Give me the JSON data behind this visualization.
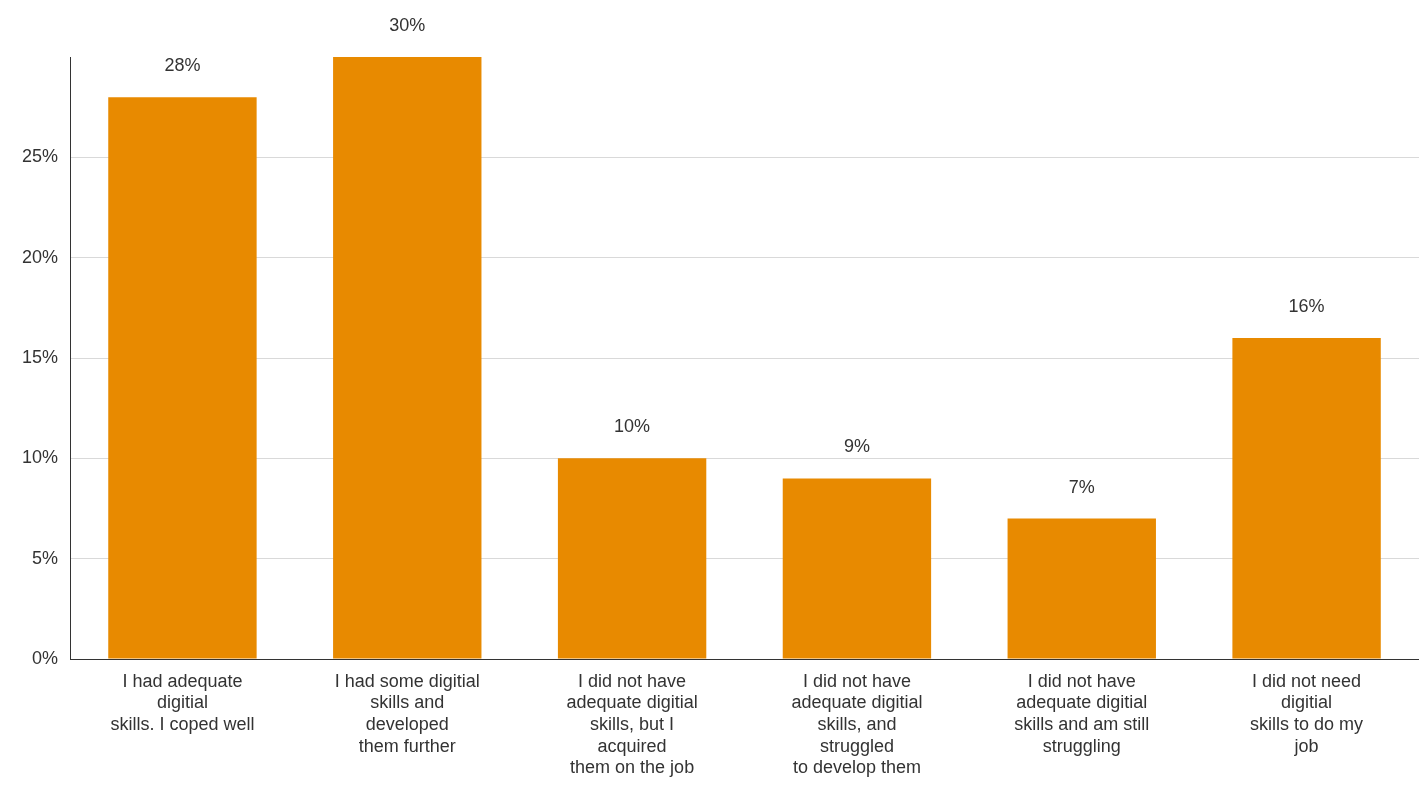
{
  "chart_data": {
    "type": "bar",
    "categories": [
      "I had adequate\ndigitial\nskills. I coped well",
      "I had some digitial\nskills and\ndeveloped\nthem further",
      "I did not have\nadequate digitial\nskills, but I\nacquired\nthem on the job",
      "I did not have\nadequate digitial\nskills, and\nstruggled\nto develop them",
      "I did not have\nadequate digitial\nskills and am still\nstruggling",
      "I did not need\ndigitial\nskills to do my\njob"
    ],
    "values": [
      28,
      30,
      10,
      9,
      7,
      16
    ],
    "value_labels": [
      "28%",
      "30%",
      "10%",
      "9%",
      "7%",
      "16%"
    ],
    "color": "#e88a00",
    "ylim": [
      0,
      30
    ],
    "yticks": [
      {
        "value": 0,
        "label": "0%"
      },
      {
        "value": 5,
        "label": "5%"
      },
      {
        "value": 10,
        "label": "10%"
      },
      {
        "value": 15,
        "label": "15%"
      },
      {
        "value": 20,
        "label": "20%"
      },
      {
        "value": 25,
        "label": "25%"
      }
    ],
    "grid": "y",
    "legend": false
  }
}
